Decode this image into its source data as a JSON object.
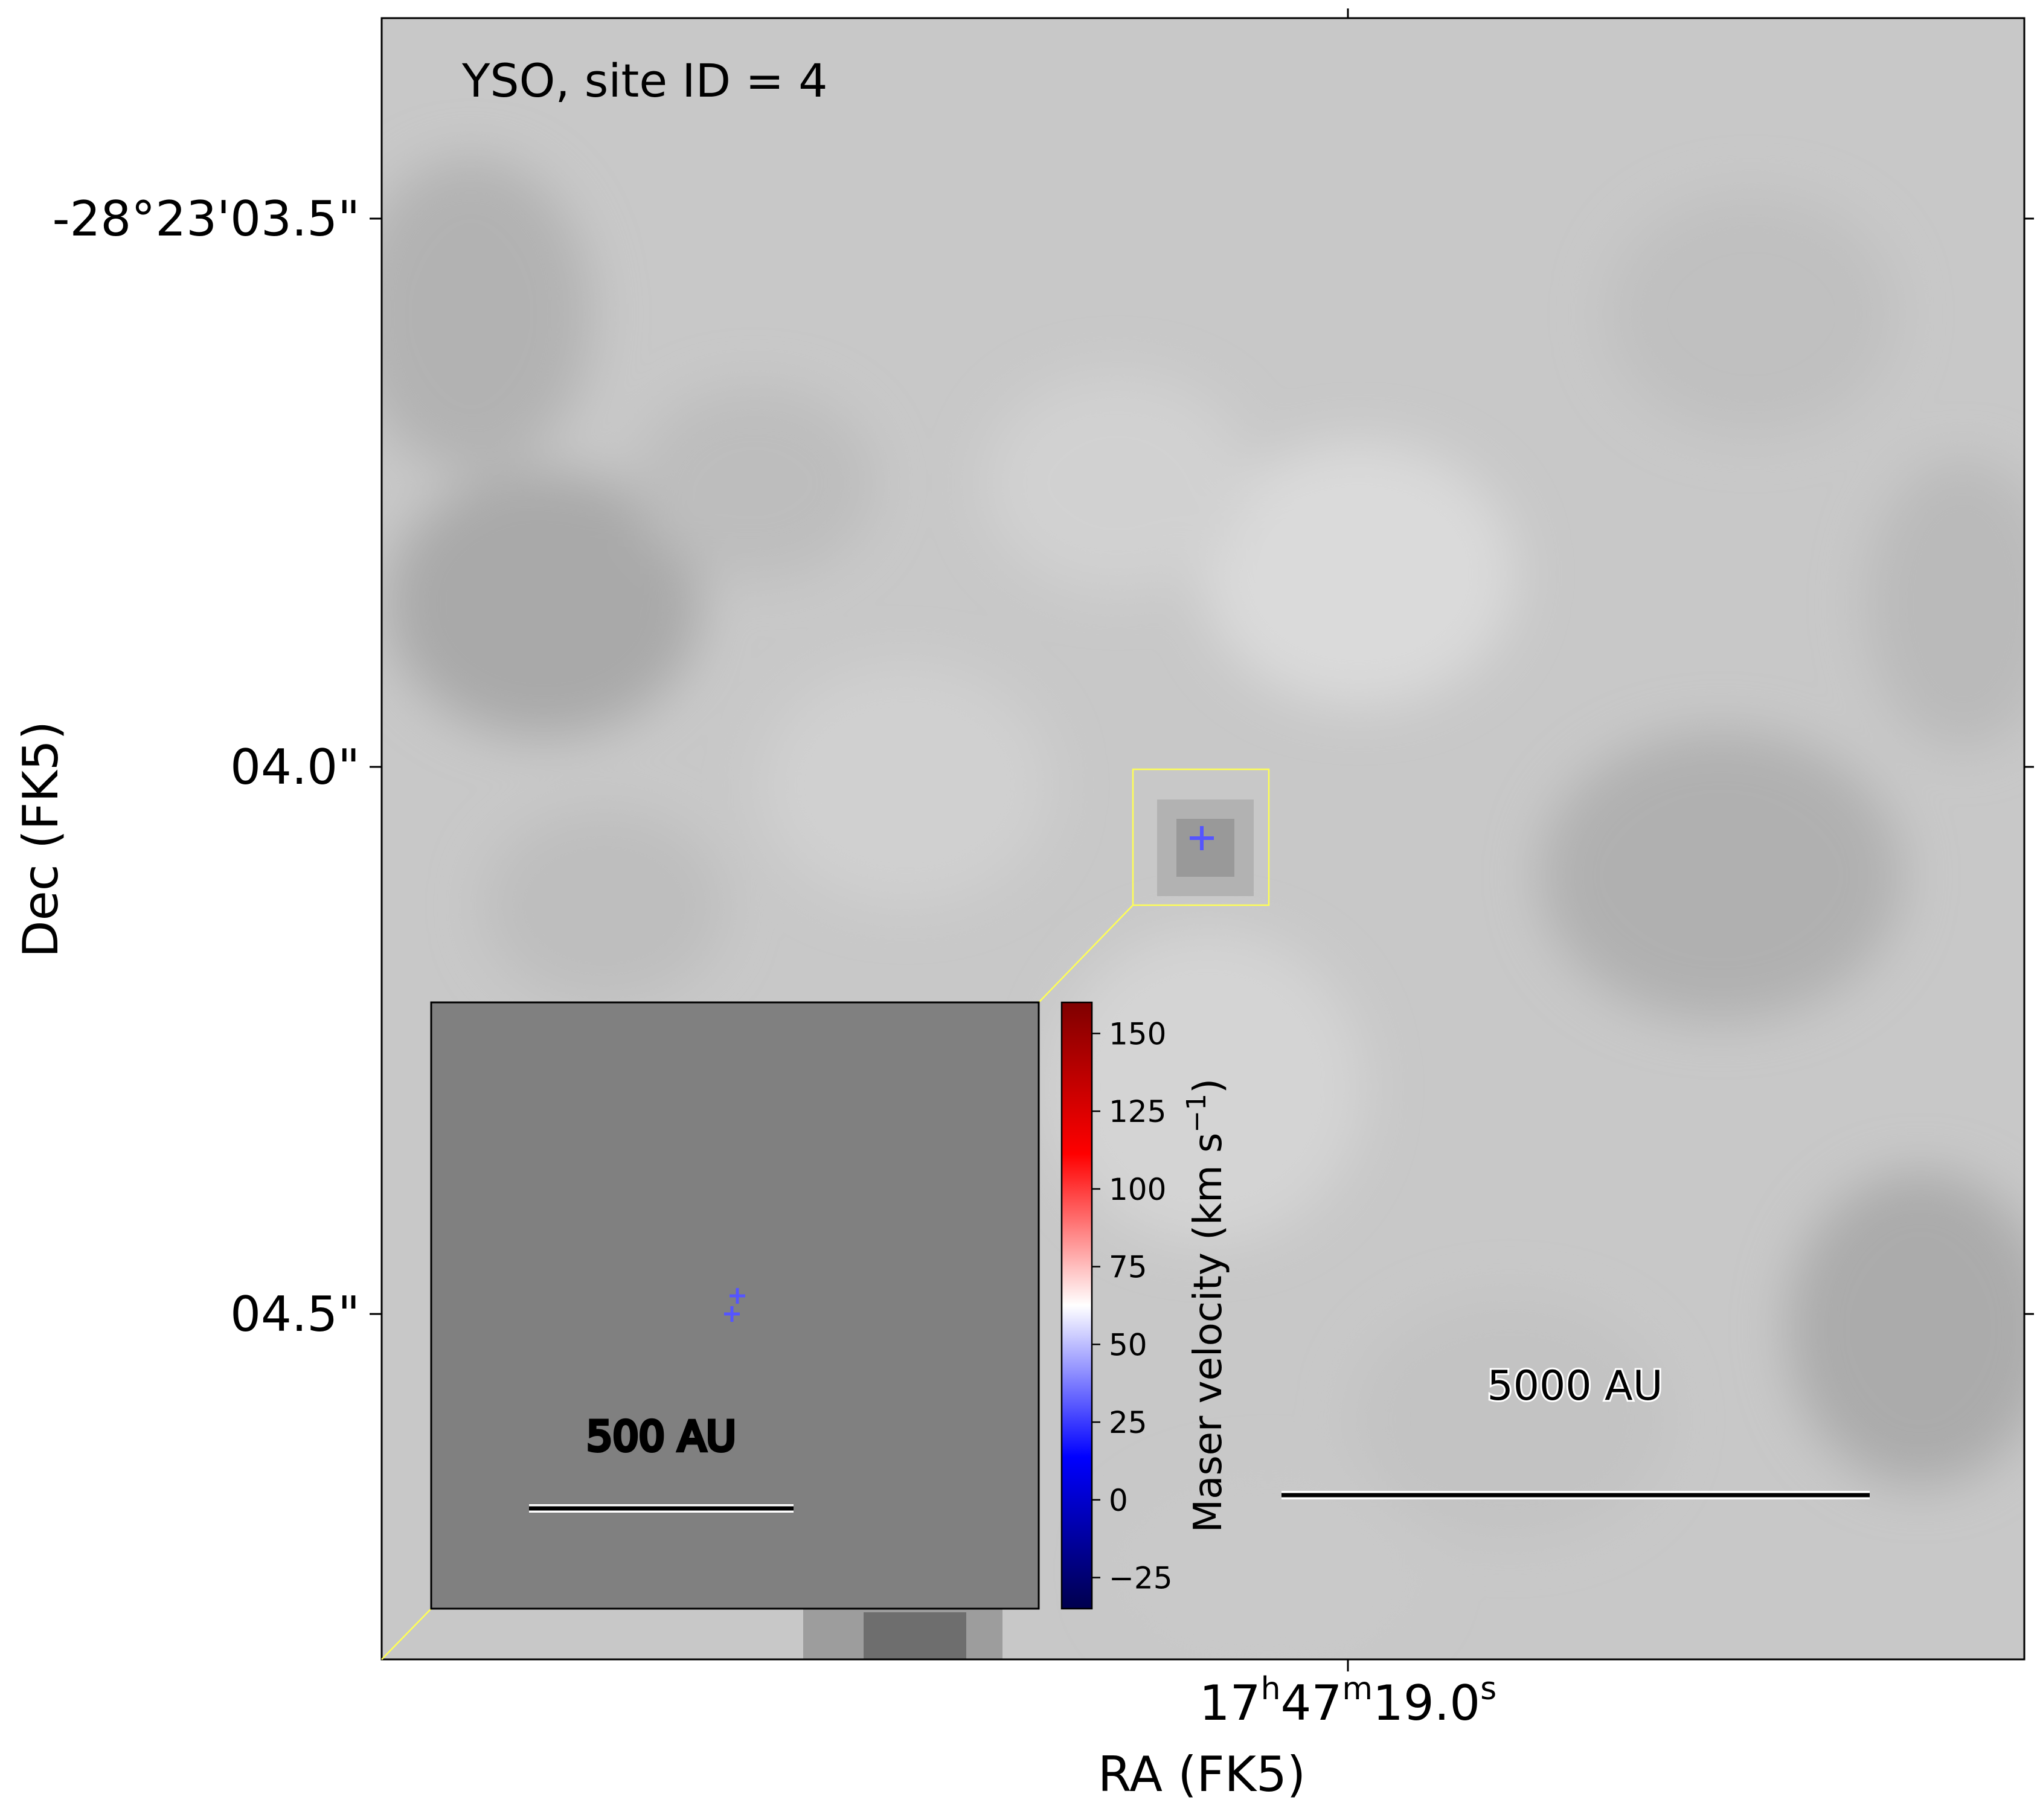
{
  "chart_data": {
    "type": "scatter",
    "title": "YSO, site ID = 4",
    "xlabel": "RA (FK5)",
    "ylabel": "Dec (FK5)",
    "x_ticks": [
      {
        "h": "17",
        "m": "47",
        "s": "19.0"
      }
    ],
    "y_ticks": [
      "-28°23'03.5\"",
      "04.0\"",
      "04.5\""
    ],
    "colorbar": {
      "label": "Maser velocity (km s",
      "label_sup": "−1",
      "label_end": ")",
      "ticks": [
        150,
        125,
        100,
        75,
        50,
        25,
        0,
        -25
      ],
      "tick_labels": [
        "150",
        "125",
        "100",
        "75",
        "50",
        "25",
        "0",
        "−25"
      ],
      "range": [
        -35,
        160
      ],
      "colormap": "seismic"
    },
    "scale_bars": {
      "main": "5000 AU",
      "inset": "500 AU"
    },
    "maser_spots": [
      {
        "where": "main",
        "velocity": 30
      },
      {
        "where": "inset",
        "velocity": 30
      },
      {
        "where": "inset",
        "velocity": 30
      }
    ],
    "colors": {
      "marker": "#4b4bff",
      "zoom_box": "#ffff55",
      "background": "#c6c6c6",
      "inset_background": "#808080"
    }
  }
}
